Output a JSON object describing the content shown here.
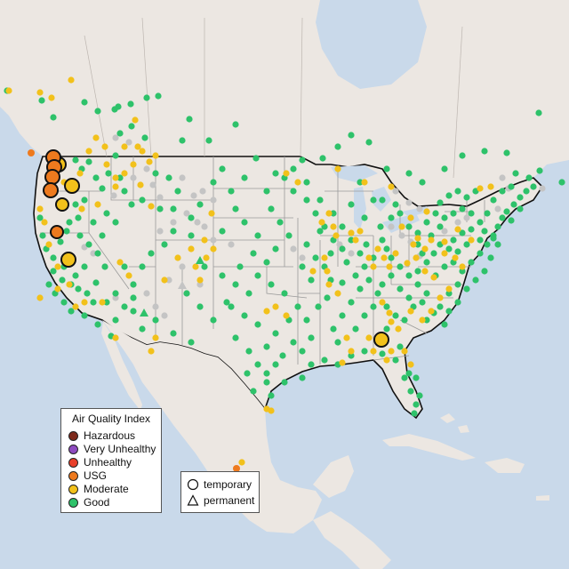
{
  "legend": {
    "title": "Air Quality Index",
    "items": [
      {
        "label": "Hazardous",
        "color": "#7e2a1c"
      },
      {
        "label": "Very Unhealthy",
        "color": "#8e4bc0"
      },
      {
        "label": "Unhealthy",
        "color": "#e8402a"
      },
      {
        "label": "USG",
        "color": "#ee7a1e"
      },
      {
        "label": "Moderate",
        "color": "#f2c11b"
      },
      {
        "label": "Good",
        "color": "#2ec26a"
      }
    ]
  },
  "type_legend": {
    "items": [
      {
        "label": "temporary",
        "symbol": "circle"
      },
      {
        "label": "permanent",
        "symbol": "triangle"
      }
    ]
  },
  "colors": {
    "ocean": "#c9d9ea",
    "land": "#ece7e2",
    "border": "#111111",
    "state_line": "#9a9a9a",
    "no_data": "#c4c4c4"
  }
}
